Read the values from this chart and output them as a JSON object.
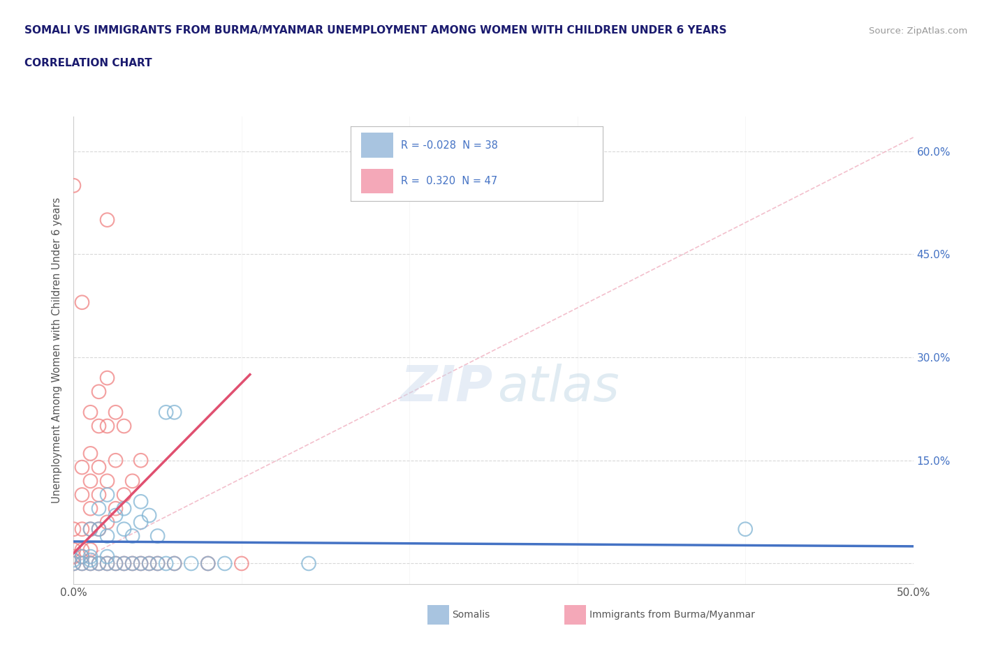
{
  "title_line1": "SOMALI VS IMMIGRANTS FROM BURMA/MYANMAR UNEMPLOYMENT AMONG WOMEN WITH CHILDREN UNDER 6 YEARS",
  "title_line2": "CORRELATION CHART",
  "source": "Source: ZipAtlas.com",
  "ylabel": "Unemployment Among Women with Children Under 6 years",
  "xlim": [
    0.0,
    0.5
  ],
  "ylim": [
    -0.03,
    0.65
  ],
  "ytick_positions": [
    0.0,
    0.15,
    0.3,
    0.45,
    0.6
  ],
  "ytick_labels_right": [
    "",
    "15.0%",
    "30.0%",
    "45.0%",
    "60.0%"
  ],
  "somali_color": "#7fb3d3",
  "burma_color": "#f08080",
  "somali_edge_color": "#5090b8",
  "burma_edge_color": "#d06060",
  "somali_line_color": "#4472c4",
  "burma_line_color": "#e05070",
  "diag_line_color": "#f0b0c0",
  "background_color": "#ffffff",
  "grid_color": "#d8d8d8",
  "title_color": "#1a1a6e",
  "source_color": "#999999",
  "right_axis_color": "#4472c4",
  "somali_R": -0.028,
  "somali_N": 38,
  "burma_R": 0.32,
  "burma_N": 47,
  "legend_box_color": "#a8c4e0",
  "legend_pink_color": "#f4a8b8",
  "somali_points": [
    [
      0.0,
      0.0
    ],
    [
      0.0,
      0.005
    ],
    [
      0.005,
      0.0
    ],
    [
      0.005,
      0.01
    ],
    [
      0.01,
      0.0
    ],
    [
      0.01,
      0.005
    ],
    [
      0.01,
      0.01
    ],
    [
      0.01,
      0.05
    ],
    [
      0.015,
      0.0
    ],
    [
      0.015,
      0.05
    ],
    [
      0.015,
      0.08
    ],
    [
      0.02,
      0.0
    ],
    [
      0.02,
      0.01
    ],
    [
      0.02,
      0.04
    ],
    [
      0.02,
      0.1
    ],
    [
      0.025,
      0.0
    ],
    [
      0.025,
      0.07
    ],
    [
      0.03,
      0.0
    ],
    [
      0.03,
      0.05
    ],
    [
      0.03,
      0.08
    ],
    [
      0.035,
      0.0
    ],
    [
      0.035,
      0.04
    ],
    [
      0.04,
      0.0
    ],
    [
      0.04,
      0.06
    ],
    [
      0.04,
      0.09
    ],
    [
      0.045,
      0.0
    ],
    [
      0.045,
      0.07
    ],
    [
      0.05,
      0.0
    ],
    [
      0.05,
      0.04
    ],
    [
      0.055,
      0.0
    ],
    [
      0.055,
      0.22
    ],
    [
      0.06,
      0.0
    ],
    [
      0.06,
      0.22
    ],
    [
      0.07,
      0.0
    ],
    [
      0.08,
      0.0
    ],
    [
      0.09,
      0.0
    ],
    [
      0.14,
      0.0
    ],
    [
      0.4,
      0.05
    ]
  ],
  "burma_points": [
    [
      0.0,
      0.0
    ],
    [
      0.0,
      0.01
    ],
    [
      0.0,
      0.02
    ],
    [
      0.0,
      0.05
    ],
    [
      0.0,
      0.55
    ],
    [
      0.005,
      0.0
    ],
    [
      0.005,
      0.01
    ],
    [
      0.005,
      0.02
    ],
    [
      0.005,
      0.05
    ],
    [
      0.005,
      0.1
    ],
    [
      0.005,
      0.14
    ],
    [
      0.005,
      0.38
    ],
    [
      0.01,
      0.0
    ],
    [
      0.01,
      0.02
    ],
    [
      0.01,
      0.05
    ],
    [
      0.01,
      0.08
    ],
    [
      0.01,
      0.12
    ],
    [
      0.01,
      0.16
    ],
    [
      0.01,
      0.22
    ],
    [
      0.015,
      0.0
    ],
    [
      0.015,
      0.05
    ],
    [
      0.015,
      0.1
    ],
    [
      0.015,
      0.14
    ],
    [
      0.015,
      0.2
    ],
    [
      0.015,
      0.25
    ],
    [
      0.02,
      0.0
    ],
    [
      0.02,
      0.06
    ],
    [
      0.02,
      0.12
    ],
    [
      0.02,
      0.2
    ],
    [
      0.02,
      0.27
    ],
    [
      0.02,
      0.5
    ],
    [
      0.025,
      0.0
    ],
    [
      0.025,
      0.08
    ],
    [
      0.025,
      0.15
    ],
    [
      0.025,
      0.22
    ],
    [
      0.03,
      0.0
    ],
    [
      0.03,
      0.1
    ],
    [
      0.03,
      0.2
    ],
    [
      0.035,
      0.0
    ],
    [
      0.035,
      0.12
    ],
    [
      0.04,
      0.0
    ],
    [
      0.04,
      0.15
    ],
    [
      0.045,
      0.0
    ],
    [
      0.05,
      0.0
    ],
    [
      0.06,
      0.0
    ],
    [
      0.08,
      0.0
    ],
    [
      0.1,
      0.0
    ]
  ]
}
